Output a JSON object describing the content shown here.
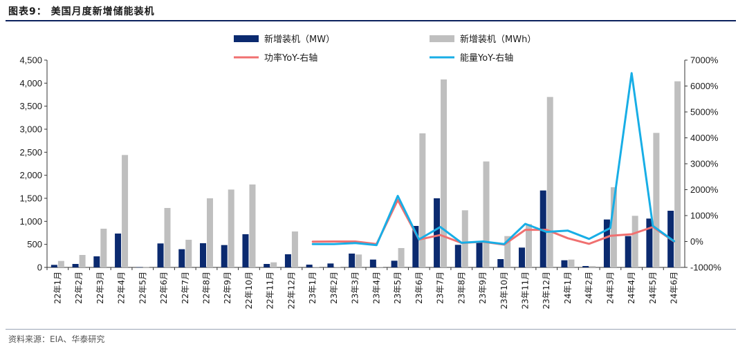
{
  "header": {
    "title": "图表9：  美国月度新增储能装机"
  },
  "footer": {
    "source": "资料来源：EIA、华泰研究"
  },
  "chart_data": {
    "type": "bar",
    "categories": [
      "22年1月",
      "22年2月",
      "22年3月",
      "22年4月",
      "22年5月",
      "22年6月",
      "22年7月",
      "22年8月",
      "22年9月",
      "22年10月",
      "22年11月",
      "22年12月",
      "23年1月",
      "23年2月",
      "23年3月",
      "23年4月",
      "23年5月",
      "23年6月",
      "23年7月",
      "23年8月",
      "23年9月",
      "23年10月",
      "23年11月",
      "23年12月",
      "24年1月",
      "24年2月",
      "24年3月",
      "24年4月",
      "24年5月",
      "24年6月"
    ],
    "series": [
      {
        "name": "新增装机（MW）",
        "kind": "bar",
        "axis": "left",
        "color": "#0b2a6f",
        "values": [
          55,
          75,
          240,
          735,
          5,
          520,
          395,
          525,
          485,
          720,
          75,
          285,
          60,
          85,
          300,
          170,
          145,
          900,
          1500,
          490,
          560,
          180,
          430,
          1670,
          155,
          30,
          1040,
          680,
          1060,
          1230
        ]
      },
      {
        "name": "新增装机（MWh）",
        "kind": "bar",
        "axis": "left",
        "color": "#bfbfbf",
        "values": [
          140,
          270,
          840,
          2440,
          5,
          1290,
          600,
          1500,
          1690,
          1800,
          110,
          780,
          10,
          10,
          280,
          10,
          420,
          2910,
          4080,
          1240,
          2300,
          680,
          940,
          3700,
          170,
          30,
          1740,
          1120,
          2920,
          4040
        ]
      },
      {
        "name": "功率YoY-右轴",
        "kind": "line",
        "axis": "right",
        "color": "#f07070",
        "values": [
          null,
          null,
          null,
          null,
          null,
          null,
          null,
          null,
          null,
          null,
          null,
          null,
          -9,
          -1,
          0,
          -100,
          1600,
          75,
          250,
          -55,
          -10,
          -120,
          450,
          450,
          125,
          -90,
          220,
          280,
          560,
          0
        ]
      },
      {
        "name": "能量YoY-右轴",
        "kind": "line",
        "axis": "right",
        "color": "#18aee6",
        "values": [
          null,
          null,
          null,
          null,
          null,
          null,
          null,
          null,
          null,
          null,
          null,
          null,
          -100,
          -100,
          -60,
          -140,
          1760,
          80,
          560,
          -50,
          0,
          -100,
          680,
          370,
          420,
          100,
          520,
          6500,
          600,
          10
        ]
      }
    ],
    "yleft": {
      "ylim": [
        0,
        4500
      ],
      "ticks": [
        "0",
        "500",
        "1,000",
        "1,500",
        "2,000",
        "2,500",
        "3,000",
        "3,500",
        "4,000",
        "4,500"
      ]
    },
    "yright": {
      "ylim": [
        -1000,
        7000
      ],
      "ticks": [
        "-1000%",
        "0%",
        "1000%",
        "2000%",
        "3000%",
        "4000%",
        "5000%",
        "6000%",
        "7000%"
      ]
    },
    "legend": {
      "placement": "top",
      "items": [
        {
          "label": "新增装机（MW）",
          "marker": "bar",
          "color": "#0b2a6f"
        },
        {
          "label": "新增装机（MWh）",
          "marker": "bar",
          "color": "#bfbfbf"
        },
        {
          "label": "功率YoY-右轴",
          "marker": "line",
          "color": "#f07070"
        },
        {
          "label": "能量YoY-右轴",
          "marker": "line",
          "color": "#18aee6"
        }
      ]
    },
    "grid": false
  }
}
